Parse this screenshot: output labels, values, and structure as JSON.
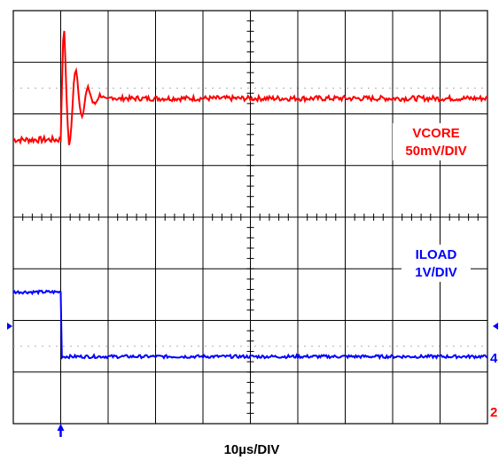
{
  "chart_data": {
    "type": "line",
    "title": "",
    "xlabel": "10µs/DIV",
    "grid": true,
    "divisions": {
      "x": 10,
      "y": 8
    },
    "time_per_div_us": 10,
    "trigger_time_us": 10,
    "xlim_us": [
      0,
      100
    ],
    "series": [
      {
        "name": "VCORE",
        "scale_label": "50mV/DIV",
        "color": "#ff0000",
        "channel": "2",
        "values_div": {
          "before_step": 5.5,
          "overshoot_peak": 7.8,
          "settled": 6.3,
          "settling_time_us": 10
        }
      },
      {
        "name": "ILOAD",
        "scale_label": "1V/DIV",
        "color": "#0000ff",
        "channel": "4",
        "values_div": {
          "before_step": 2.55,
          "after_step": 1.3
        }
      }
    ]
  },
  "labels": {
    "vcore_name": "VCORE",
    "vcore_scale": "50mV/DIV",
    "iload_name": "ILOAD",
    "iload_scale": "1V/DIV",
    "timebase": "10µs/DIV",
    "ch4_marker": "4",
    "ch2_marker": "2"
  },
  "colors": {
    "vcore": "#ff0000",
    "iload": "#0000ff",
    "grid": "#000000",
    "dots": "#b0b0b0"
  }
}
